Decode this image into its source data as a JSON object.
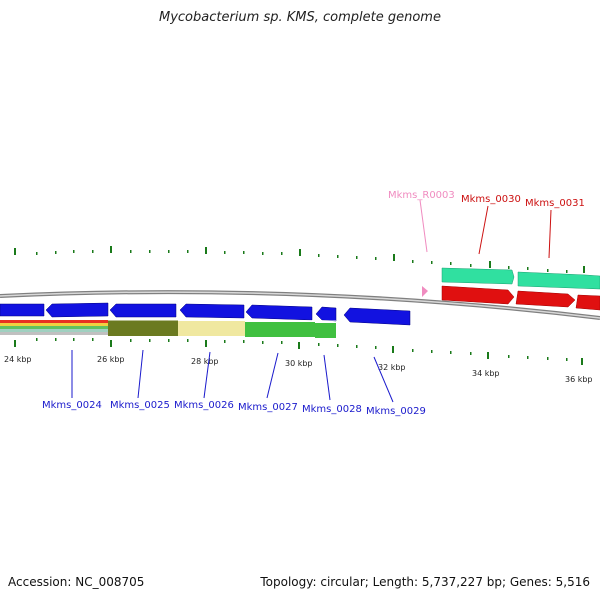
{
  "header": {
    "title": "Mycobacterium sp. KMS, complete genome"
  },
  "footer": {
    "accession": "Accession: NC_008705",
    "summary": "Topology: circular; Length: 5,737,227 bp; Genes: 5,516"
  },
  "scale_labels": [
    "24 kbp",
    "26 kbp",
    "28 kbp",
    "30 kbp",
    "32 kbp",
    "34 kbp",
    "36 kbp"
  ],
  "gene_labels": {
    "bottom": [
      "Mkms_0024",
      "Mkms_0025",
      "Mkms_0026",
      "Mkms_0027",
      "Mkms_0028",
      "Mkms_0029"
    ],
    "top": [
      "Mkms_R0003",
      "Mkms_0030",
      "Mkms_0031"
    ]
  },
  "colors": {
    "reverse_gene": "#1212e0",
    "forward_gene": "#e01010",
    "forward_teal": "#30e0a0",
    "rna": "#f08cc0",
    "backbone": "#808080",
    "tick": "#1a7a1a",
    "label_blue": "#1a1acc",
    "label_red": "#cc1010",
    "label_pink": "#f08cc0",
    "band_olive": "#6b7a20",
    "band_pale": "#f0e8a0",
    "band_green": "#40c040"
  }
}
